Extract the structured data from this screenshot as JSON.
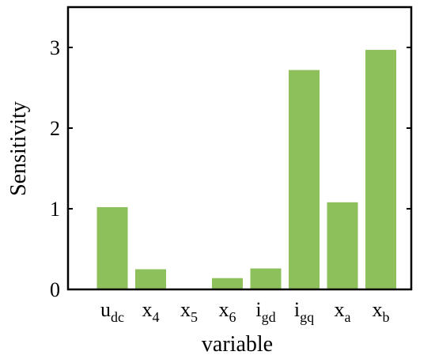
{
  "chart_data": {
    "type": "bar",
    "categories": [
      {
        "base": "u",
        "sub": "dc"
      },
      {
        "base": "x",
        "sub": "4"
      },
      {
        "base": "x",
        "sub": "5"
      },
      {
        "base": "x",
        "sub": "6"
      },
      {
        "base": "i",
        "sub": "gd"
      },
      {
        "base": "i",
        "sub": "gq"
      },
      {
        "base": "x",
        "sub": "a"
      },
      {
        "base": "x",
        "sub": "b"
      }
    ],
    "values": [
      1.02,
      0.25,
      0.0,
      0.14,
      0.26,
      2.72,
      1.08,
      2.97
    ],
    "xlabel": "variable",
    "ylabel": "Sensitivity",
    "ylim": [
      0,
      3.5
    ],
    "yticks": [
      0,
      1,
      2,
      3
    ],
    "bar_color": "#8dbf5a",
    "grid": false,
    "legend": "none"
  }
}
